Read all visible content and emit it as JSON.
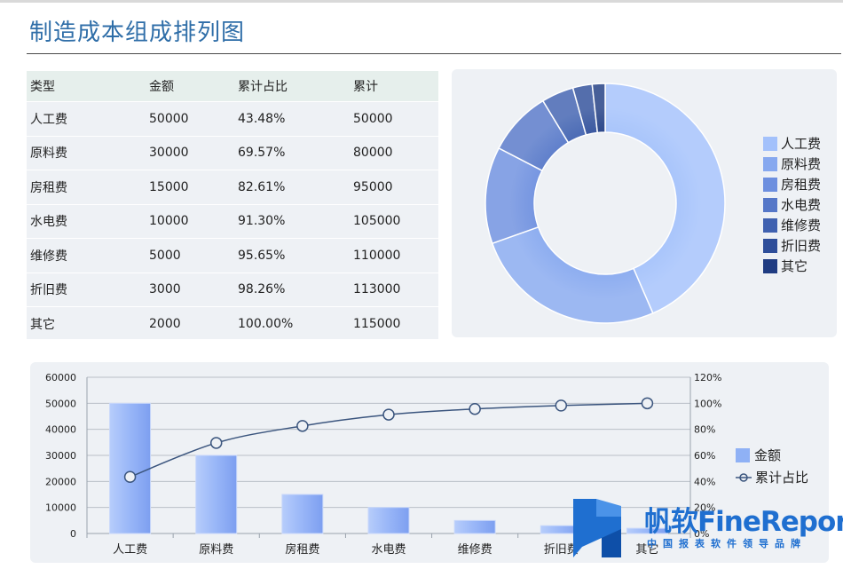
{
  "page": {
    "title": "制造成本组成排列图"
  },
  "table": {
    "headers": [
      "类型",
      "金额",
      "累计占比",
      "累计"
    ],
    "rows": [
      [
        "人工费",
        "50000",
        "43.48%",
        "50000"
      ],
      [
        "原料费",
        "30000",
        "69.57%",
        "80000"
      ],
      [
        "房租费",
        "15000",
        "82.61%",
        "95000"
      ],
      [
        "水电费",
        "10000",
        "91.30%",
        "105000"
      ],
      [
        "维修费",
        "5000",
        "95.65%",
        "110000"
      ],
      [
        "折旧费",
        "3000",
        "98.26%",
        "113000"
      ],
      [
        "其它",
        "2000",
        "100.00%",
        "115000"
      ]
    ]
  },
  "chart_data": [
    {
      "type": "pie",
      "style": "donut",
      "categories": [
        "人工费",
        "原料费",
        "房租费",
        "水电费",
        "维修费",
        "折旧费",
        "其它"
      ],
      "values": [
        50000,
        30000,
        15000,
        10000,
        5000,
        3000,
        2000
      ],
      "colors": [
        "#a3c1fb",
        "#86a8ef",
        "#6d8fdf",
        "#5577c8",
        "#3f61b0",
        "#2e4e9a",
        "#1f3c82"
      ],
      "legend": "right"
    },
    {
      "type": "bar",
      "categories": [
        "人工费",
        "原料费",
        "房租费",
        "水电费",
        "维修费",
        "折旧费",
        "其它"
      ],
      "series": [
        {
          "name": "金额",
          "type": "bar",
          "axis": "left",
          "values": [
            50000,
            30000,
            15000,
            10000,
            5000,
            3000,
            2000
          ],
          "color": "#8fb1f5"
        },
        {
          "name": "累计占比",
          "type": "line",
          "axis": "right",
          "values": [
            43.48,
            69.57,
            82.61,
            91.3,
            95.65,
            98.26,
            100.0
          ],
          "color": "#3b557e"
        }
      ],
      "ylim": [
        0,
        60000
      ],
      "yticks": [
        "0",
        "10000",
        "20000",
        "30000",
        "40000",
        "50000",
        "60000"
      ],
      "y2lim": [
        0,
        120
      ],
      "y2ticks": [
        "0%",
        "20%",
        "40%",
        "60%",
        "80%",
        "100%",
        "120%"
      ],
      "legend": "right",
      "grid": true
    }
  ],
  "watermark": {
    "brand": "帆软FineReport",
    "slogan": "中国报表软件领导品牌"
  }
}
